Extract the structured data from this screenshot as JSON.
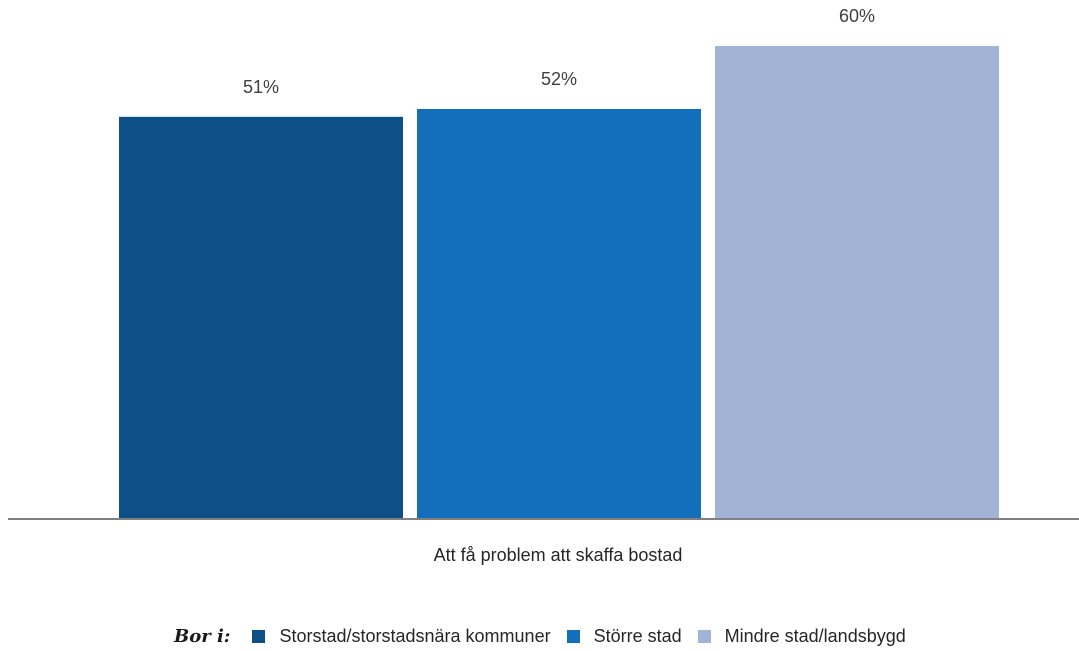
{
  "chart_data": {
    "type": "bar",
    "categories": [
      "Att få problem att skaffa bostad"
    ],
    "series": [
      {
        "name": "Storstad/storstadsnära kommuner",
        "values": [
          51
        ],
        "label": "51%",
        "color": "#0d5087"
      },
      {
        "name": "Större stad",
        "values": [
          52
        ],
        "label": "52%",
        "color": "#136fba"
      },
      {
        "name": "Mindre stad/landsbygd",
        "values": [
          60
        ],
        "label": "60%",
        "color": "#a1b4d6"
      }
    ],
    "ylim": [
      0,
      70
    ],
    "grid": false,
    "legend_position": "bottom",
    "legend_prefix": "Bor i:",
    "axis_color": "#808080"
  }
}
